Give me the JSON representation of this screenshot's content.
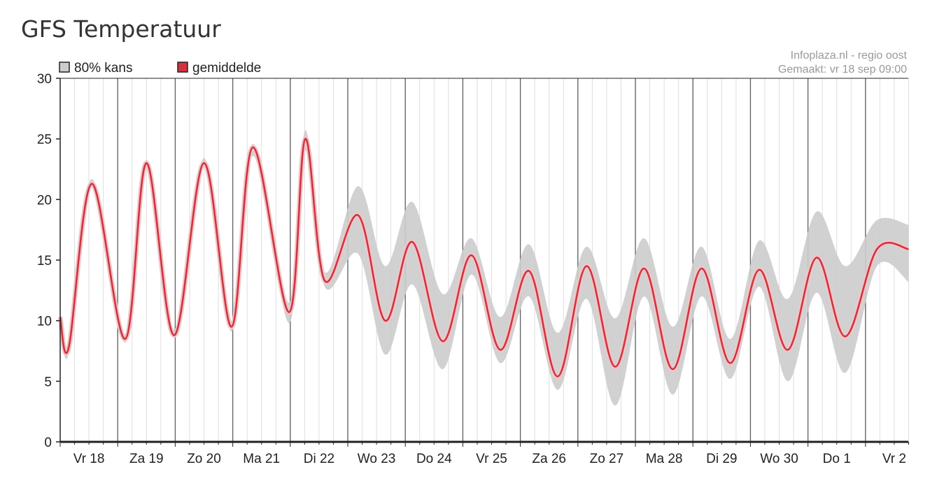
{
  "title": "GFS Temperatuur",
  "credit": {
    "line1": "Infoplaza.nl - regio oost",
    "line2": "Gemaakt: vr 18 sep 09:00"
  },
  "chart_data": {
    "type": "area",
    "title": "GFS Temperatuur",
    "xlabel": "",
    "ylabel": "",
    "ylim": [
      0,
      30
    ],
    "yticks": [
      0,
      5,
      10,
      15,
      20,
      25,
      30
    ],
    "xlim": [
      0,
      14.75
    ],
    "grid": true,
    "legend_position": "top-left",
    "day_labels": [
      "Vr 18",
      "Za 19",
      "Zo 20",
      "Ma 21",
      "Di 22",
      "Wo 23",
      "Do 24",
      "Vr 25",
      "Za 26",
      "Zo 27",
      "Ma 28",
      "Di 29",
      "Wo 30",
      "Do 1",
      "Vr 2"
    ],
    "series": [
      {
        "name": "80% kans",
        "color": "#cccccc",
        "x": [
          0,
          0.15,
          0.55,
          1.13,
          1.5,
          1.98,
          2.5,
          2.98,
          3.35,
          3.98,
          4.26,
          4.6,
          5.18,
          5.65,
          6.12,
          6.65,
          7.15,
          7.65,
          8.15,
          8.65,
          9.15,
          9.65,
          10.15,
          10.65,
          11.15,
          11.65,
          12.15,
          12.65,
          13.15,
          13.65,
          14.2,
          14.75
        ],
        "upper": [
          10.5,
          8.3,
          21.7,
          8.9,
          23.3,
          9.3,
          23.4,
          10.0,
          24.6,
          11.5,
          25.7,
          14.0,
          21.1,
          14.5,
          19.8,
          12.2,
          16.8,
          10.3,
          16.3,
          9.0,
          16.1,
          10.2,
          16.8,
          9.5,
          16.1,
          8.5,
          16.6,
          11.8,
          19.0,
          14.5,
          18.3,
          17.9
        ],
        "lower": [
          10.0,
          7.3,
          21.0,
          8.2,
          22.6,
          8.6,
          22.7,
          9.1,
          23.6,
          9.8,
          24.0,
          12.8,
          15.5,
          7.2,
          13.0,
          6.0,
          13.8,
          6.5,
          12.0,
          4.3,
          11.8,
          3.0,
          12.0,
          3.9,
          12.0,
          5.2,
          12.8,
          5.0,
          12.3,
          5.7,
          14.5,
          13.2
        ]
      },
      {
        "name": "gemiddelde",
        "color": "#d0343f",
        "x": [
          0,
          0.15,
          0.55,
          1.13,
          1.5,
          1.98,
          2.5,
          2.98,
          3.35,
          3.98,
          4.26,
          4.6,
          5.18,
          5.65,
          6.12,
          6.65,
          7.15,
          7.65,
          8.15,
          8.65,
          9.15,
          9.65,
          10.15,
          10.65,
          11.15,
          11.65,
          12.15,
          12.65,
          13.15,
          13.65,
          14.2,
          14.75
        ],
        "values": [
          10.3,
          7.8,
          21.3,
          8.5,
          23.0,
          8.8,
          23.0,
          9.5,
          24.3,
          10.7,
          25.0,
          13.3,
          18.7,
          10.0,
          16.5,
          8.3,
          15.4,
          7.6,
          14.1,
          5.4,
          14.5,
          6.2,
          14.3,
          6.0,
          14.3,
          6.5,
          14.2,
          7.6,
          15.2,
          8.7,
          15.9,
          15.9
        ]
      }
    ]
  }
}
